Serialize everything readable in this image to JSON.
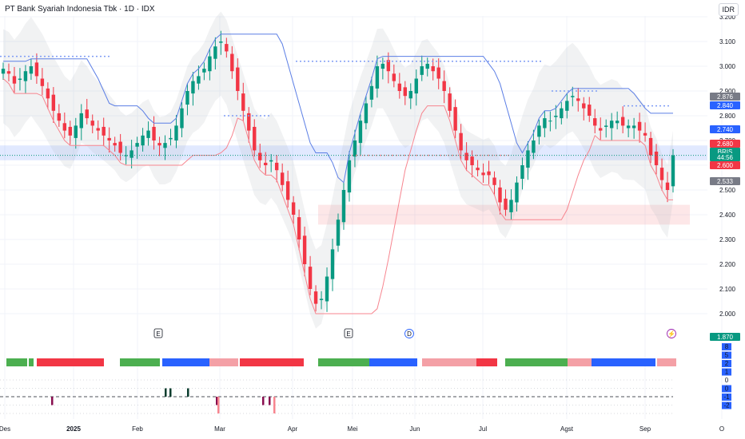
{
  "header": {
    "title": "PT Bank Syariah Indonesia Tbk · 1D · IDX",
    "currency_button": "IDR"
  },
  "chart_data": [
    {
      "type": "candlestick",
      "title": "PT Bank Syariah Indonesia Tbk · 1D · IDX",
      "symbol": "BRIS",
      "currency": "IDR",
      "y_ticks": [
        2000,
        2100,
        2200,
        2300,
        2400,
        2500,
        2600,
        2700,
        2800,
        2900,
        3000,
        3100,
        3200
      ],
      "ylim": [
        1960,
        3220
      ],
      "x_ticks": [
        "Des",
        "2025",
        "Feb",
        "Mar",
        "Apr",
        "Mei",
        "Jun",
        "Jul",
        "Agst",
        "Sep",
        "O"
      ],
      "price_tags": [
        {
          "label": "2.876",
          "color": "#787b86"
        },
        {
          "label": "2.840",
          "color": "#2962ff"
        },
        {
          "label": "2.740",
          "color": "#2962ff"
        },
        {
          "label": "2.680",
          "color": "#f23645"
        },
        {
          "label": "BRIS",
          "color": "#089981"
        },
        {
          "label": "44:56",
          "color": "#089981"
        },
        {
          "label": "2.600",
          "color": "#f23645"
        },
        {
          "label": "2.533",
          "color": "#787b86"
        },
        {
          "label": "1.870",
          "color": "#089981"
        }
      ],
      "current_price": 2640,
      "event_markers": [
        "E",
        "E",
        "D",
        "⚡"
      ],
      "series": [
        {
          "kind": "ohlc_close",
          "values": [
            2990,
            2970,
            2930,
            2950,
            2980,
            3000,
            2960,
            2920,
            2870,
            2820,
            2780,
            2740,
            2720,
            2760,
            2810,
            2790,
            2760,
            2740,
            2720,
            2700,
            2680,
            2650,
            2640,
            2660,
            2690,
            2720,
            2740,
            2700,
            2680,
            2690,
            2710,
            2760,
            2830,
            2900,
            2940,
            2960,
            2990,
            3040,
            3080,
            3100,
            3060,
            2980,
            2900,
            2820,
            2740,
            2660,
            2620,
            2600,
            2620,
            2580,
            2520,
            2460,
            2400,
            2300,
            2200,
            2100,
            2040,
            2060,
            2150,
            2260,
            2380,
            2500,
            2620,
            2700,
            2780,
            2850,
            2920,
            3000,
            3010,
            2980,
            2940,
            2900,
            2880,
            2900,
            2950,
            3000,
            3010,
            2980,
            2950,
            2900,
            2820,
            2740,
            2660,
            2620,
            2600,
            2580,
            2560,
            2560,
            2520,
            2450,
            2420,
            2460,
            2530,
            2600,
            2660,
            2700,
            2760,
            2790,
            2780,
            2800,
            2830,
            2860,
            2880,
            2860,
            2830,
            2800,
            2760,
            2740,
            2760,
            2780,
            2780,
            2760,
            2760,
            2760,
            2740,
            2720,
            2640,
            2600,
            2540,
            2500,
            2640
          ]
        }
      ]
    },
    {
      "type": "bar",
      "title": "",
      "y_ticks": [
        -3,
        -2,
        -1,
        0,
        1,
        2,
        3
      ],
      "colored_tags": [
        "8",
        "5",
        "2",
        "1",
        "0",
        "0",
        "-1",
        "-2"
      ]
    }
  ]
}
